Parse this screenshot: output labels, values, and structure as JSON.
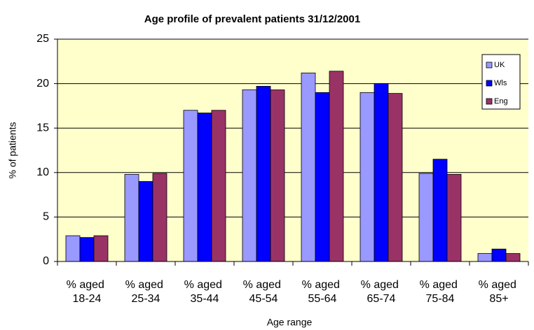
{
  "chart_data": {
    "type": "bar",
    "title": "Age profile of prevalent patients 31/12/2001",
    "x_label": "Age range",
    "y_label": "% of patients",
    "categories": [
      "% aged 18-24",
      "% aged 25-34",
      "% aged 35-44",
      "% aged 45-54",
      "% aged 55-64",
      "% aged 65-74",
      "% aged 75-84",
      "% aged 85+"
    ],
    "series": [
      {
        "name": "UK",
        "color": "#9999ff",
        "values": [
          2.9,
          9.8,
          17.0,
          19.3,
          21.2,
          19.0,
          9.9,
          0.9
        ]
      },
      {
        "name": "Wls",
        "color": "#0000ff",
        "values": [
          2.7,
          9.0,
          16.7,
          19.7,
          19.0,
          20.0,
          11.5,
          1.4
        ]
      },
      {
        "name": "Eng",
        "color": "#993366",
        "values": [
          2.9,
          9.9,
          17.0,
          19.3,
          21.4,
          18.9,
          9.8,
          0.9
        ]
      }
    ],
    "ylim": [
      0,
      25
    ],
    "yticks": [
      0,
      5,
      10,
      15,
      20,
      25
    ],
    "grid": true,
    "legend": "upper right",
    "plot_background": "#ffffcc"
  }
}
